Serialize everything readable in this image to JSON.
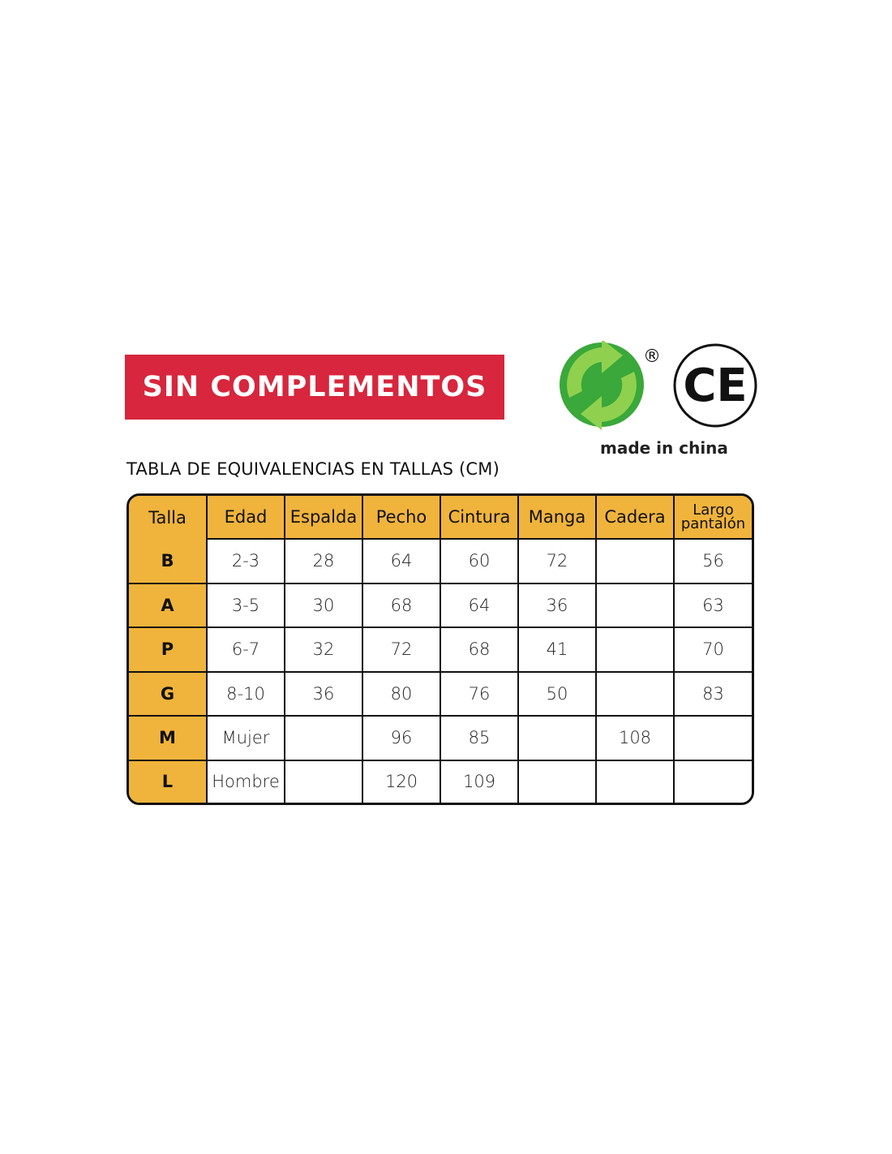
{
  "banner": {
    "text": "SIN COMPLEMENTOS",
    "color": "#d7263d"
  },
  "logos": {
    "green_dot": "green-dot-recycling-logo",
    "registered": "®",
    "ce": "CE",
    "made_in": "made in china"
  },
  "title": "TABLA DE EQUIVALENCIAS EN TALLAS (CM)",
  "table": {
    "header_color": "#f0b43c",
    "columns": [
      "Talla",
      "Edad",
      "Espalda",
      "Pecho",
      "Cintura",
      "Manga",
      "Cadera",
      "Largo pantalón"
    ],
    "rows": [
      [
        "B",
        "2-3",
        "28",
        "64",
        "60",
        "72",
        "",
        "56"
      ],
      [
        "A",
        "3-5",
        "30",
        "68",
        "64",
        "36",
        "",
        "63"
      ],
      [
        "P",
        "6-7",
        "32",
        "72",
        "68",
        "41",
        "",
        "70"
      ],
      [
        "G",
        "8-10",
        "36",
        "80",
        "76",
        "50",
        "",
        "83"
      ],
      [
        "M",
        "Mujer",
        "",
        "96",
        "85",
        "",
        "108",
        ""
      ],
      [
        "L",
        "Hombre",
        "",
        "120",
        "109",
        "",
        "",
        ""
      ]
    ]
  }
}
